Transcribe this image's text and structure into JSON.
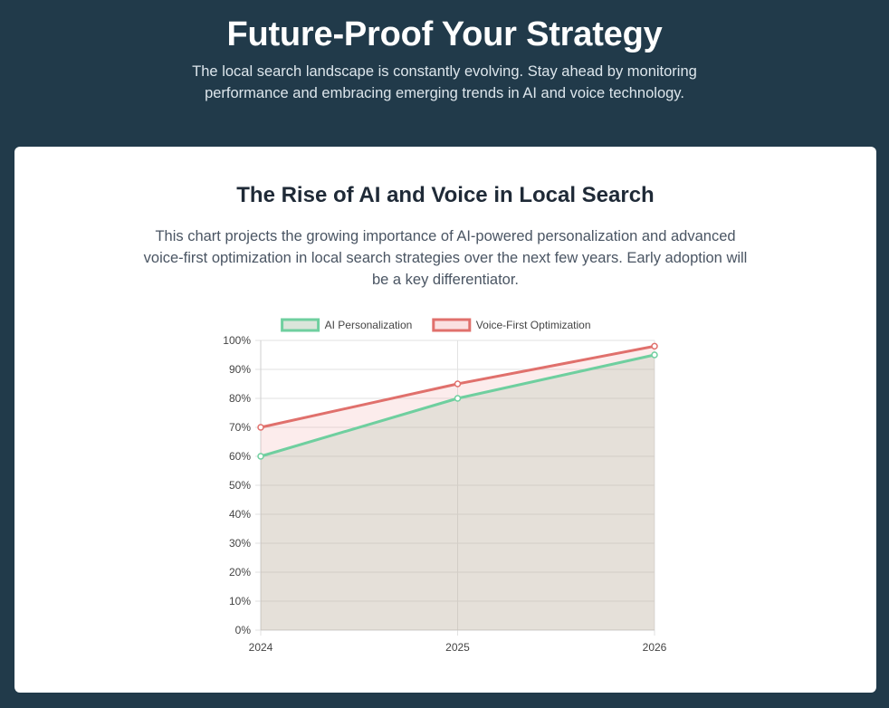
{
  "hero": {
    "title": "Future-Proof Your Strategy",
    "subtitle": "The local search landscape is constantly evolving. Stay ahead by monitoring performance and embracing emerging trends in AI and voice technology."
  },
  "card": {
    "title": "The Rise of AI and Voice in Local Search",
    "description": "This chart projects the growing importance of AI-powered personalization and advanced voice-first optimization in local search strategies over the next few years. Early adoption will be a key differentiator."
  },
  "colors": {
    "background": "#213a4a",
    "card": "#ffffff"
  },
  "chart_data": {
    "type": "line",
    "x": [
      "2024",
      "2025",
      "2026"
    ],
    "ylim": [
      0,
      100
    ],
    "y_ticks": [
      "0%",
      "10%",
      "20%",
      "30%",
      "40%",
      "50%",
      "60%",
      "70%",
      "80%",
      "90%",
      "100%"
    ],
    "grid": true,
    "legend": "top",
    "series": [
      {
        "name": "AI Personalization",
        "values": [
          60,
          80,
          95
        ],
        "color": "#6fcf9f",
        "fill": "rgba(150,180,150,0.22)"
      },
      {
        "name": "Voice-First Optimization",
        "values": [
          70,
          85,
          98
        ],
        "color": "#e0706c",
        "fill": "rgba(240,170,170,0.22)"
      }
    ]
  }
}
